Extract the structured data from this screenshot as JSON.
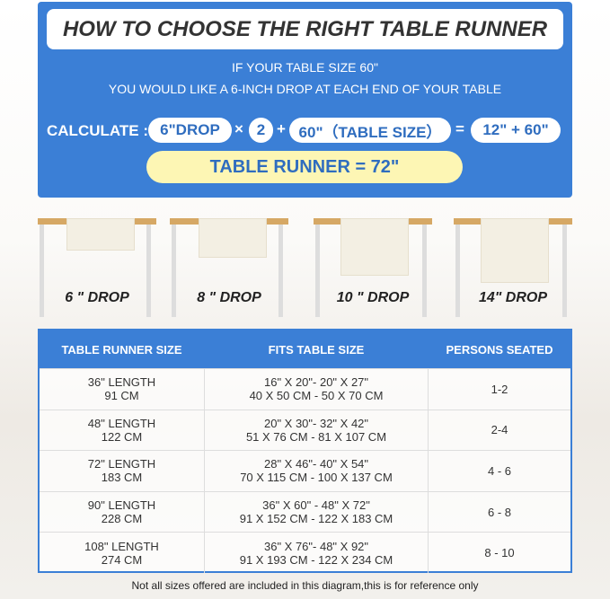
{
  "title": "HOW TO CHOOSE THE RIGHT TABLE RUNNER",
  "intro": [
    "IF YOUR TABLE SIZE 60\"",
    "YOU WOULD LIKE A 6-INCH DROP AT EACH END OF YOUR TABLE"
  ],
  "calculation": {
    "label": "CALCULATE :",
    "drop": "6\"DROP",
    "times": "×",
    "multiplier": "2",
    "plus": "+",
    "table_size": "60\"（TABLE SIZE）",
    "equals": "=",
    "sum": "12\" + 60\"",
    "result": "TABLE RUNNER = 72\""
  },
  "drops": [
    "6 \" DROP",
    "8 \" DROP",
    "10 \" DROP",
    "14\" DROP"
  ],
  "table": {
    "headers": [
      "TABLE RUNNER SIZE",
      "FITS TABLE SIZE",
      "PERSONS SEATED"
    ],
    "rows": [
      {
        "length": "36\" LENGTH",
        "cm": "91 CM",
        "fit_in": "16\" X 20\"- 20\" X 27\"",
        "fit_cm": "40 X 50 CM - 50 X 70 CM",
        "persons": "1-2"
      },
      {
        "length": "48\" LENGTH",
        "cm": "122 CM",
        "fit_in": "20\" X 30\"- 32\" X 42\"",
        "fit_cm": "51 X 76 CM - 81 X 107 CM",
        "persons": "2-4"
      },
      {
        "length": "72\" LENGTH",
        "cm": "183 CM",
        "fit_in": "28\" X 46\"- 40\" X 54\"",
        "fit_cm": "70 X 115 CM - 100 X 137 CM",
        "persons": "4 - 6"
      },
      {
        "length": "90\" LENGTH",
        "cm": "228 CM",
        "fit_in": "36\" X 60\" - 48\" X 72\"",
        "fit_cm": "91 X 152 CM - 122 X 183 CM",
        "persons": "6 - 8"
      },
      {
        "length": "108\" LENGTH",
        "cm": "274 CM",
        "fit_in": "36\" X 76\"- 48\" X 92\"",
        "fit_cm": "91 X 193 CM - 122 X 234 CM",
        "persons": "8 - 10"
      }
    ]
  },
  "footnote": "Not all sizes offered are included in this diagram,this is for reference only",
  "colors": {
    "blue": "#3b7fd6",
    "yellow": "#fdf6b4",
    "wood": "#d6a865"
  }
}
